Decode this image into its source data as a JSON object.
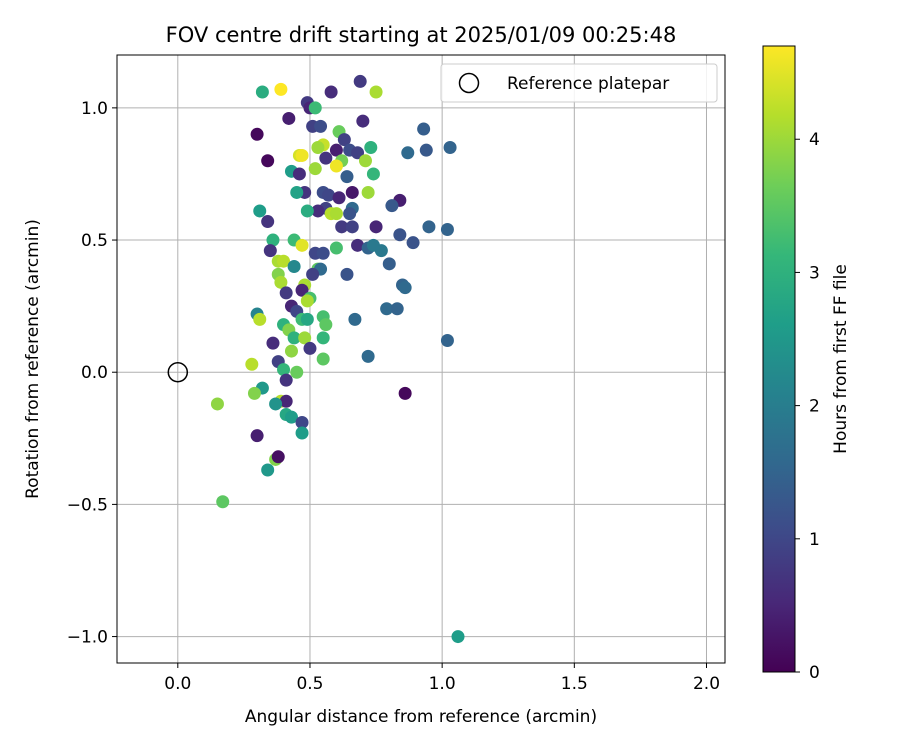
{
  "chart_data": {
    "type": "scatter",
    "title": "FOV centre drift starting at 2025/01/09 00:25:48",
    "xlabel": "Angular distance from reference (arcmin)",
    "ylabel": "Rotation from reference (arcmin)",
    "xlim": [
      -0.23,
      2.07
    ],
    "ylim": [
      -1.1,
      1.2
    ],
    "xticks": [
      0.0,
      0.5,
      1.0,
      1.5,
      2.0
    ],
    "xtick_labels": [
      "0.0",
      "0.5",
      "1.0",
      "1.5",
      "2.0"
    ],
    "yticks": [
      -1.0,
      -0.5,
      0.0,
      0.5,
      1.0
    ],
    "ytick_labels": [
      "−1.0",
      "−0.5",
      "0.0",
      "0.5",
      "1.0"
    ],
    "grid": true,
    "legend": {
      "position": "top-right",
      "entries": [
        {
          "label": "Reference platepar",
          "marker": "open-circle",
          "x": 0.0,
          "y": 0.0
        }
      ]
    },
    "colorbar": {
      "label": "Hours from first FF file",
      "colormap": "viridis",
      "range": [
        0,
        4.7
      ],
      "ticks": [
        0,
        1,
        2,
        3,
        4
      ],
      "tick_labels": [
        "0",
        "1",
        "2",
        "3",
        "4"
      ],
      "colors": [
        "#440154",
        "#482878",
        "#3e4a89",
        "#31688e",
        "#26828e",
        "#1f9e89",
        "#35b779",
        "#6ece58",
        "#b5de2b",
        "#fde725"
      ]
    },
    "points": [
      [
        0.39,
        1.07,
        4.7
      ],
      [
        0.32,
        1.06,
        2.9
      ],
      [
        0.75,
        1.06,
        4.1
      ],
      [
        0.69,
        1.1,
        0.8
      ],
      [
        0.58,
        1.06,
        0.6
      ],
      [
        0.49,
        1.02,
        0.8
      ],
      [
        0.5,
        1.0,
        0.5
      ],
      [
        0.52,
        1.0,
        3.2
      ],
      [
        0.51,
        0.93,
        0.9
      ],
      [
        0.54,
        0.93,
        1.1
      ],
      [
        0.7,
        0.95,
        0.6
      ],
      [
        0.42,
        0.96,
        0.4
      ],
      [
        0.3,
        0.9,
        0.1
      ],
      [
        0.61,
        0.91,
        3.6
      ],
      [
        0.63,
        0.88,
        0.9
      ],
      [
        0.93,
        0.92,
        1.4
      ],
      [
        0.55,
        0.86,
        4.3
      ],
      [
        0.53,
        0.85,
        4.0
      ],
      [
        0.6,
        0.84,
        0.4
      ],
      [
        0.65,
        0.84,
        1.1
      ],
      [
        0.68,
        0.83,
        0.9
      ],
      [
        0.73,
        0.85,
        3.0
      ],
      [
        0.94,
        0.84,
        1.3
      ],
      [
        0.87,
        0.83,
        1.6
      ],
      [
        1.03,
        0.85,
        1.5
      ],
      [
        0.34,
        0.8,
        0.1
      ],
      [
        0.46,
        0.82,
        4.4
      ],
      [
        0.47,
        0.82,
        4.6
      ],
      [
        0.56,
        0.81,
        0.7
      ],
      [
        0.62,
        0.8,
        3.7
      ],
      [
        0.71,
        0.8,
        4.0
      ],
      [
        0.6,
        0.78,
        4.6
      ],
      [
        0.52,
        0.77,
        4.0
      ],
      [
        0.43,
        0.76,
        2.6
      ],
      [
        0.46,
        0.75,
        0.6
      ],
      [
        0.64,
        0.74,
        1.4
      ],
      [
        0.74,
        0.75,
        3.1
      ],
      [
        0.48,
        0.68,
        0.7
      ],
      [
        0.45,
        0.68,
        2.7
      ],
      [
        0.55,
        0.68,
        1.1
      ],
      [
        0.57,
        0.67,
        1.0
      ],
      [
        0.66,
        0.68,
        0.3
      ],
      [
        0.61,
        0.66,
        0.5
      ],
      [
        0.72,
        0.68,
        4.0
      ],
      [
        0.84,
        0.65,
        0.4
      ],
      [
        0.66,
        0.62,
        1.6
      ],
      [
        0.81,
        0.63,
        1.3
      ],
      [
        0.56,
        0.62,
        0.9
      ],
      [
        0.53,
        0.61,
        0.6
      ],
      [
        0.58,
        0.6,
        4.2
      ],
      [
        0.31,
        0.61,
        2.6
      ],
      [
        0.49,
        0.61,
        2.9
      ],
      [
        0.6,
        0.6,
        4.1
      ],
      [
        0.65,
        0.6,
        1.2
      ],
      [
        0.34,
        0.57,
        0.7
      ],
      [
        0.62,
        0.55,
        0.8
      ],
      [
        0.66,
        0.55,
        0.9
      ],
      [
        0.75,
        0.55,
        0.5
      ],
      [
        0.95,
        0.55,
        1.5
      ],
      [
        1.02,
        0.54,
        1.5
      ],
      [
        0.84,
        0.52,
        1.2
      ],
      [
        0.36,
        0.5,
        3.0
      ],
      [
        0.44,
        0.5,
        3.2
      ],
      [
        0.47,
        0.48,
        4.5
      ],
      [
        0.89,
        0.49,
        1.2
      ],
      [
        0.6,
        0.47,
        3.3
      ],
      [
        0.68,
        0.48,
        0.6
      ],
      [
        0.72,
        0.47,
        1.5
      ],
      [
        0.74,
        0.48,
        1.9
      ],
      [
        0.77,
        0.46,
        1.9
      ],
      [
        0.35,
        0.46,
        0.7
      ],
      [
        0.52,
        0.45,
        1.0
      ],
      [
        0.55,
        0.45,
        1.1
      ],
      [
        0.38,
        0.42,
        4.1
      ],
      [
        0.4,
        0.42,
        4.2
      ],
      [
        0.44,
        0.4,
        2.2
      ],
      [
        0.53,
        0.39,
        3.5
      ],
      [
        0.54,
        0.39,
        1.6
      ],
      [
        0.64,
        0.37,
        1.2
      ],
      [
        0.8,
        0.41,
        1.4
      ],
      [
        0.38,
        0.37,
        3.8
      ],
      [
        0.39,
        0.34,
        4.1
      ],
      [
        0.48,
        0.33,
        4.1
      ],
      [
        0.51,
        0.37,
        0.9
      ],
      [
        0.47,
        0.31,
        0.5
      ],
      [
        0.41,
        0.3,
        0.8
      ],
      [
        0.5,
        0.28,
        3.3
      ],
      [
        0.49,
        0.27,
        4.1
      ],
      [
        0.85,
        0.33,
        1.5
      ],
      [
        0.86,
        0.32,
        1.6
      ],
      [
        0.43,
        0.25,
        0.5
      ],
      [
        0.45,
        0.23,
        1.0
      ],
      [
        0.79,
        0.24,
        1.6
      ],
      [
        0.83,
        0.24,
        1.5
      ],
      [
        0.3,
        0.22,
        2.1
      ],
      [
        0.31,
        0.2,
        4.2
      ],
      [
        0.47,
        0.2,
        3.2
      ],
      [
        0.49,
        0.2,
        2.8
      ],
      [
        0.55,
        0.21,
        3.3
      ],
      [
        0.56,
        0.18,
        3.5
      ],
      [
        0.67,
        0.2,
        1.6
      ],
      [
        0.4,
        0.18,
        3.0
      ],
      [
        0.42,
        0.16,
        3.8
      ],
      [
        0.44,
        0.13,
        3.0
      ],
      [
        0.48,
        0.13,
        4.0
      ],
      [
        0.55,
        0.13,
        3.1
      ],
      [
        1.02,
        0.12,
        1.5
      ],
      [
        0.36,
        0.11,
        0.6
      ],
      [
        0.43,
        0.08,
        3.9
      ],
      [
        0.5,
        0.09,
        0.8
      ],
      [
        0.55,
        0.05,
        3.5
      ],
      [
        0.72,
        0.06,
        1.6
      ],
      [
        0.38,
        0.04,
        0.9
      ],
      [
        0.28,
        0.03,
        4.2
      ],
      [
        0.4,
        0.01,
        3.1
      ],
      [
        0.45,
        0.0,
        3.6
      ],
      [
        0.41,
        -0.03,
        0.7
      ],
      [
        0.32,
        -0.06,
        2.5
      ],
      [
        0.29,
        -0.08,
        3.8
      ],
      [
        0.39,
        -0.11,
        4.2
      ],
      [
        0.41,
        -0.11,
        0.5
      ],
      [
        0.37,
        -0.12,
        2.4
      ],
      [
        0.15,
        -0.12,
        3.9
      ],
      [
        0.86,
        -0.08,
        0.1
      ],
      [
        0.41,
        -0.16,
        2.8
      ],
      [
        0.43,
        -0.17,
        2.6
      ],
      [
        0.47,
        -0.19,
        1.0
      ],
      [
        0.3,
        -0.24,
        0.4
      ],
      [
        0.47,
        -0.23,
        2.6
      ],
      [
        0.37,
        -0.33,
        3.8
      ],
      [
        0.38,
        -0.32,
        0.2
      ],
      [
        0.34,
        -0.37,
        2.5
      ],
      [
        0.17,
        -0.49,
        3.5
      ],
      [
        1.06,
        -1.0,
        2.6
      ]
    ]
  }
}
